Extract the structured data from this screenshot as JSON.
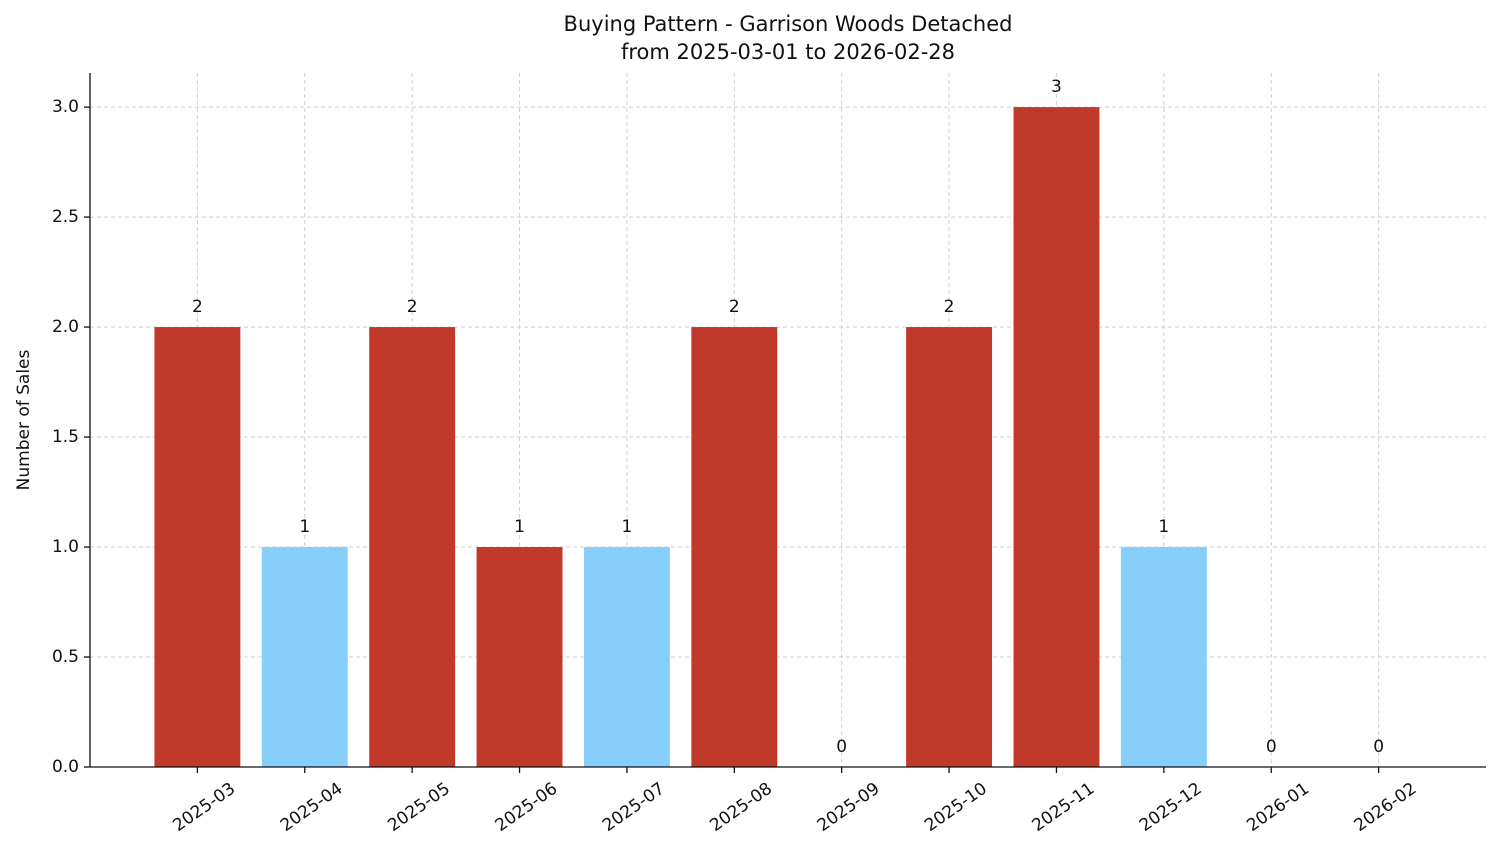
{
  "chart_data": {
    "type": "bar",
    "title": "Buying Pattern - Garrison Woods Detached",
    "subtitle": "from 2025-03-01 to 2026-02-28",
    "y_label": "Number of Sales",
    "categories": [
      "2025-03",
      "2025-04",
      "2025-05",
      "2025-06",
      "2025-07",
      "2025-08",
      "2025-09",
      "2025-10",
      "2025-11",
      "2025-12",
      "2026-01",
      "2026-02"
    ],
    "values": [
      2,
      1,
      2,
      1,
      1,
      2,
      0,
      2,
      3,
      1,
      0,
      0
    ],
    "colors": [
      "#c0392b",
      "#87cefa",
      "#c0392b",
      "#c0392b",
      "#87cefa",
      "#c0392b",
      "#c0392b",
      "#c0392b",
      "#c0392b",
      "#87cefa",
      "#c0392b",
      "#c0392b"
    ],
    "ylim": [
      0,
      3.155
    ],
    "yticks": [
      {
        "value": 0,
        "label": "0.0"
      },
      0.5,
      {
        "value": 1,
        "label": "1.0"
      },
      1.5,
      {
        "value": 2,
        "label": "2.0"
      },
      2.5,
      {
        "value": 3,
        "label": "3.0"
      }
    ],
    "grid": true
  }
}
